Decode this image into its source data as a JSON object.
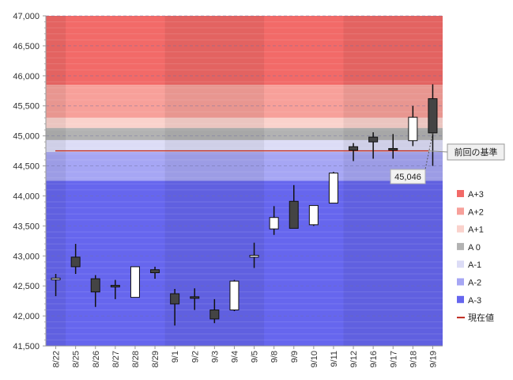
{
  "chart_data": {
    "type": "candlestick",
    "ylim": [
      41500,
      47000
    ],
    "yticks": [
      "41,500",
      "42,000",
      "42,500",
      "43,000",
      "43,500",
      "44,000",
      "44,500",
      "45,000",
      "45,500",
      "46,000",
      "46,500",
      "47,000"
    ],
    "categories": [
      "8/22",
      "8/25",
      "8/26",
      "8/27",
      "8/28",
      "8/29",
      "9/1",
      "9/2",
      "9/3",
      "9/4",
      "9/5",
      "9/8",
      "9/9",
      "9/10",
      "9/11",
      "9/12",
      "9/16",
      "9/17",
      "9/18",
      "9/19"
    ],
    "candles": [
      {
        "open": 42620,
        "close": 42630,
        "high": 42700,
        "low": 42330
      },
      {
        "open": 42980,
        "close": 42820,
        "high": 43200,
        "low": 42700
      },
      {
        "open": 42620,
        "close": 42400,
        "high": 42680,
        "low": 42150
      },
      {
        "open": 42510,
        "close": 42490,
        "high": 42600,
        "low": 42280
      },
      {
        "open": 42310,
        "close": 42820,
        "high": 42820,
        "low": 42310
      },
      {
        "open": 42770,
        "close": 42720,
        "high": 42820,
        "low": 42620
      },
      {
        "open": 42370,
        "close": 42200,
        "high": 42450,
        "low": 41840
      },
      {
        "open": 42320,
        "close": 42310,
        "high": 42460,
        "low": 42100
      },
      {
        "open": 42100,
        "close": 41950,
        "high": 42280,
        "low": 41880
      },
      {
        "open": 42100,
        "close": 42580,
        "high": 42600,
        "low": 42080
      },
      {
        "open": 42980,
        "close": 43010,
        "high": 43220,
        "low": 42800
      },
      {
        "open": 43450,
        "close": 43640,
        "high": 43830,
        "low": 43350
      },
      {
        "open": 43910,
        "close": 43460,
        "high": 44180,
        "low": 43460
      },
      {
        "open": 43520,
        "close": 43840,
        "high": 43840,
        "low": 43500
      },
      {
        "open": 43880,
        "close": 44380,
        "high": 44400,
        "low": 43880
      },
      {
        "open": 44820,
        "close": 44760,
        "high": 44880,
        "low": 44580
      },
      {
        "open": 44980,
        "close": 44900,
        "high": 45060,
        "low": 44620
      },
      {
        "open": 44790,
        "close": 44780,
        "high": 45030,
        "low": 44620
      },
      {
        "open": 44920,
        "close": 45310,
        "high": 45500,
        "low": 44830
      },
      {
        "open": 45620,
        "close": 45050,
        "high": 45860,
        "low": 44500
      }
    ],
    "bands": [
      {
        "name": "A+3",
        "from": 45850,
        "to": 47000,
        "color": "#f26a68"
      },
      {
        "name": "A+2",
        "from": 45300,
        "to": 45850,
        "color": "#f7a09a"
      },
      {
        "name": "A+1",
        "from": 45130,
        "to": 45300,
        "color": "#fad2cc"
      },
      {
        "name": "A 0",
        "from": 44930,
        "to": 45130,
        "color": "#b2b2b2"
      },
      {
        "name": "A-1",
        "from": 44730,
        "to": 44930,
        "color": "#dcdcf6"
      },
      {
        "name": "A-2",
        "from": 44250,
        "to": 44730,
        "color": "#a6a6f4"
      },
      {
        "name": "A-3",
        "from": 41500,
        "to": 44250,
        "color": "#6666ee"
      }
    ],
    "reference_line": {
      "label": "前回の基準",
      "value": 44750,
      "color": "#c0281e"
    },
    "current_value_label": "45,046",
    "current_value": 45046,
    "legend": [
      {
        "label": "A+3",
        "color": "#f26a68",
        "kind": "square"
      },
      {
        "label": "A+2",
        "color": "#f7a09a",
        "kind": "square"
      },
      {
        "label": "A+1",
        "color": "#fad2cc",
        "kind": "square"
      },
      {
        "label": "A 0",
        "color": "#b2b2b2",
        "kind": "square"
      },
      {
        "label": "A-1",
        "color": "#dcdcf6",
        "kind": "square"
      },
      {
        "label": "A-2",
        "color": "#a6a6f4",
        "kind": "square"
      },
      {
        "label": "A-3",
        "color": "#6666ee",
        "kind": "square"
      },
      {
        "label": "現在値",
        "color": "#c0281e",
        "kind": "line"
      }
    ],
    "colors": {
      "bear_body": "#444444",
      "bull_body": "#ffffff",
      "wick": "#111111",
      "grid": "#8c8cc0"
    },
    "grid": true,
    "legend_position": "right"
  }
}
